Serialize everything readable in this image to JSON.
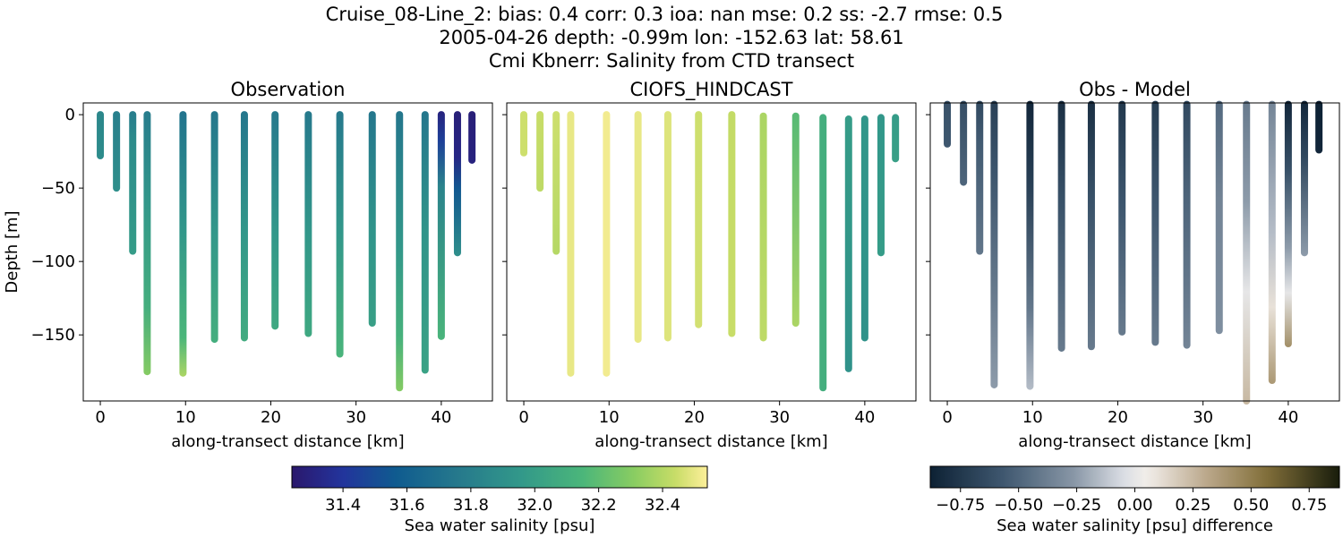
{
  "title_lines": [
    "Cruise_08-Line_2: bias: 0.4  corr: 0.3  ioa: nan  mse: 0.2  ss: -2.7  rmse: 0.5",
    "2005-04-26 depth: -0.99m lon: -152.63 lat: 58.61",
    "Cmi Kbnerr: Salinity from CTD transect"
  ],
  "chart_data": [
    {
      "type": "scatter",
      "title": "Observation",
      "xlabel": "along-transect distance [km]",
      "ylabel": "Depth [m]",
      "xlim": [
        -2,
        46
      ],
      "ylim": [
        -195,
        8
      ],
      "xticks": [
        0,
        10,
        20,
        30,
        40
      ],
      "xtick_labels": [
        "0",
        "10",
        "20",
        "30",
        "40"
      ],
      "yticks": [
        0,
        -50,
        -100,
        -150
      ],
      "ytick_labels": [
        "0",
        "−50",
        "−100",
        "−150"
      ],
      "colormap": "haline",
      "clim": [
        31.24,
        32.54
      ],
      "colorbar_label": "Sea water salinity [psu]",
      "colorbar_ticks": [
        "31.4",
        "31.6",
        "31.8",
        "32.0",
        "32.2",
        "32.4"
      ],
      "colorbar_tick_values": [
        31.4,
        31.6,
        31.8,
        32.0,
        32.2,
        32.4
      ],
      "profiles": [
        {
          "x": 0.0,
          "top": 0,
          "bottom": -28,
          "stops": [
            [
              0,
              31.85
            ],
            [
              -28,
              31.88
            ]
          ]
        },
        {
          "x": 1.9,
          "top": 0,
          "bottom": -50,
          "stops": [
            [
              0,
              31.8
            ],
            [
              -50,
              31.9
            ]
          ]
        },
        {
          "x": 3.8,
          "top": 0,
          "bottom": -93,
          "stops": [
            [
              0,
              31.78
            ],
            [
              -20,
              31.88
            ],
            [
              -93,
              31.98
            ]
          ]
        },
        {
          "x": 5.5,
          "top": 0,
          "bottom": -175,
          "stops": [
            [
              0,
              31.78
            ],
            [
              -60,
              31.95
            ],
            [
              -130,
              32.1
            ],
            [
              -175,
              32.3
            ]
          ]
        },
        {
          "x": 9.7,
          "top": 0,
          "bottom": -176,
          "stops": [
            [
              0,
              31.72
            ],
            [
              -80,
              31.95
            ],
            [
              -150,
              32.15
            ],
            [
              -176,
              32.38
            ]
          ]
        },
        {
          "x": 13.4,
          "top": 0,
          "bottom": -153,
          "stops": [
            [
              0,
              31.74
            ],
            [
              -80,
              31.95
            ],
            [
              -153,
              32.1
            ]
          ]
        },
        {
          "x": 16.9,
          "top": 0,
          "bottom": -152,
          "stops": [
            [
              0,
              31.74
            ],
            [
              -80,
              31.95
            ],
            [
              -152,
              32.08
            ]
          ]
        },
        {
          "x": 20.5,
          "top": 0,
          "bottom": -144,
          "stops": [
            [
              0,
              31.76
            ],
            [
              -80,
              31.95
            ],
            [
              -144,
              32.06
            ]
          ]
        },
        {
          "x": 24.4,
          "top": 0,
          "bottom": -149,
          "stops": [
            [
              0,
              31.76
            ],
            [
              -80,
              31.95
            ],
            [
              -149,
              32.06
            ]
          ]
        },
        {
          "x": 28.1,
          "top": 0,
          "bottom": -163,
          "stops": [
            [
              0,
              31.76
            ],
            [
              -80,
              31.95
            ],
            [
              -163,
              32.14
            ]
          ]
        },
        {
          "x": 31.9,
          "top": 0,
          "bottom": -142,
          "stops": [
            [
              0,
              31.74
            ],
            [
              -80,
              31.93
            ],
            [
              -142,
              32.0
            ]
          ]
        },
        {
          "x": 35.1,
          "top": 0,
          "bottom": -186,
          "stops": [
            [
              0,
              31.74
            ],
            [
              -90,
              31.95
            ],
            [
              -150,
              32.12
            ],
            [
              -186,
              32.3
            ]
          ]
        },
        {
          "x": 38.1,
          "top": 0,
          "bottom": -174,
          "stops": [
            [
              0,
              31.74
            ],
            [
              -80,
              31.93
            ],
            [
              -174,
              32.02
            ]
          ]
        },
        {
          "x": 40.0,
          "top": 0,
          "bottom": -151,
          "stops": [
            [
              0,
              31.3
            ],
            [
              -20,
              31.45
            ],
            [
              -50,
              31.82
            ],
            [
              -151,
              32.14
            ]
          ]
        },
        {
          "x": 41.9,
          "top": 0,
          "bottom": -94,
          "stops": [
            [
              0,
              31.28
            ],
            [
              -30,
              31.32
            ],
            [
              -50,
              31.55
            ],
            [
              -94,
              31.9
            ]
          ]
        },
        {
          "x": 43.6,
          "top": 0,
          "bottom": -31,
          "stops": [
            [
              0,
              31.28
            ],
            [
              -31,
              31.3
            ]
          ]
        }
      ]
    },
    {
      "type": "scatter",
      "title": "CIOFS_HINDCAST",
      "xlabel": "along-transect distance [km]",
      "ylabel": "",
      "xlim": [
        -2,
        46
      ],
      "ylim": [
        -195,
        8
      ],
      "xticks": [
        0,
        10,
        20,
        30,
        40
      ],
      "xtick_labels": [
        "0",
        "10",
        "20",
        "30",
        "40"
      ],
      "yticks": [
        0,
        -50,
        -100,
        -150
      ],
      "ytick_labels": [],
      "colormap": "haline",
      "clim": [
        31.24,
        32.54
      ],
      "profiles": [
        {
          "x": 0.0,
          "top": 0,
          "bottom": -26,
          "stops": [
            [
              0,
              32.45
            ],
            [
              -26,
              32.45
            ]
          ]
        },
        {
          "x": 1.9,
          "top": 0,
          "bottom": -50,
          "stops": [
            [
              0,
              32.44
            ],
            [
              -50,
              32.42
            ]
          ]
        },
        {
          "x": 3.8,
          "top": 0,
          "bottom": -93,
          "stops": [
            [
              0,
              32.45
            ],
            [
              -93,
              32.4
            ]
          ]
        },
        {
          "x": 5.5,
          "top": 0,
          "bottom": -176,
          "stops": [
            [
              0,
              32.5
            ],
            [
              -176,
              32.5
            ]
          ]
        },
        {
          "x": 9.7,
          "top": 0,
          "bottom": -176,
          "stops": [
            [
              0,
              32.52
            ],
            [
              -176,
              32.52
            ]
          ]
        },
        {
          "x": 13.4,
          "top": 0,
          "bottom": -153,
          "stops": [
            [
              0,
              32.5
            ],
            [
              -153,
              32.5
            ]
          ]
        },
        {
          "x": 16.9,
          "top": 0,
          "bottom": -152,
          "stops": [
            [
              0,
              32.48
            ],
            [
              -152,
              32.48
            ]
          ]
        },
        {
          "x": 20.5,
          "top": 0,
          "bottom": -143,
          "stops": [
            [
              0,
              32.45
            ],
            [
              -143,
              32.46
            ]
          ]
        },
        {
          "x": 24.4,
          "top": 0,
          "bottom": -149,
          "stops": [
            [
              0,
              32.43
            ],
            [
              -149,
              32.44
            ]
          ]
        },
        {
          "x": 28.1,
          "top": -1,
          "bottom": -152,
          "stops": [
            [
              -1,
              32.38
            ],
            [
              -152,
              32.42
            ]
          ]
        },
        {
          "x": 31.9,
          "top": -1,
          "bottom": -142,
          "stops": [
            [
              -1,
              32.18
            ],
            [
              -142,
              32.38
            ]
          ]
        },
        {
          "x": 35.1,
          "top": -2,
          "bottom": -186,
          "stops": [
            [
              -2,
              32.1
            ],
            [
              -186,
              32.1
            ]
          ]
        },
        {
          "x": 38.1,
          "top": -3,
          "bottom": -173,
          "stops": [
            [
              -3,
              31.98
            ],
            [
              -173,
              31.92
            ]
          ]
        },
        {
          "x": 40.0,
          "top": -3,
          "bottom": -152,
          "stops": [
            [
              -3,
              31.94
            ],
            [
              -152,
              31.92
            ]
          ]
        },
        {
          "x": 41.9,
          "top": -2,
          "bottom": -94,
          "stops": [
            [
              -2,
              31.95
            ],
            [
              -94,
              31.98
            ]
          ]
        },
        {
          "x": 43.6,
          "top": -2,
          "bottom": -30,
          "stops": [
            [
              -2,
              31.98
            ],
            [
              -30,
              32.0
            ]
          ]
        }
      ]
    },
    {
      "type": "scatter",
      "title": "Obs - Model",
      "xlabel": "along-transect distance [km]",
      "ylabel": "",
      "xlim": [
        -2,
        46
      ],
      "ylim": [
        -195,
        8
      ],
      "xticks": [
        0,
        10,
        20,
        30,
        40
      ],
      "xtick_labels": [
        "0",
        "10",
        "20",
        "30",
        "40"
      ],
      "yticks": [
        0,
        -50,
        -100,
        -150
      ],
      "ytick_labels": [],
      "colormap": "diff",
      "clim": [
        -0.88,
        0.88
      ],
      "colorbar_label": "Sea water salinity [psu] difference",
      "colorbar_ticks": [
        "−0.75",
        "−0.50",
        "−0.25",
        "0.00",
        "0.25",
        "0.50",
        "0.75"
      ],
      "colorbar_tick_values": [
        -0.75,
        -0.5,
        -0.25,
        0.0,
        0.25,
        0.5,
        0.75
      ],
      "profiles": [
        {
          "x": 0.0,
          "top": 7,
          "bottom": -20,
          "stops": [
            [
              7,
              -0.6
            ],
            [
              -20,
              -0.57
            ]
          ]
        },
        {
          "x": 1.9,
          "top": 7,
          "bottom": -46,
          "stops": [
            [
              7,
              -0.62
            ],
            [
              -46,
              -0.5
            ]
          ]
        },
        {
          "x": 3.8,
          "top": 7,
          "bottom": -93,
          "stops": [
            [
              7,
              -0.65
            ],
            [
              -20,
              -0.55
            ],
            [
              -93,
              -0.42
            ]
          ]
        },
        {
          "x": 5.5,
          "top": 7,
          "bottom": -184,
          "stops": [
            [
              7,
              -0.7
            ],
            [
              -40,
              -0.58
            ],
            [
              -120,
              -0.4
            ],
            [
              -184,
              -0.25
            ]
          ]
        },
        {
          "x": 9.7,
          "top": 7,
          "bottom": -185,
          "stops": [
            [
              7,
              -0.85
            ],
            [
              -50,
              -0.7
            ],
            [
              -130,
              -0.42
            ],
            [
              -185,
              -0.15
            ]
          ]
        },
        {
          "x": 13.4,
          "top": 7,
          "bottom": -159,
          "stops": [
            [
              7,
              -0.8
            ],
            [
              -60,
              -0.6
            ],
            [
              -159,
              -0.4
            ]
          ]
        },
        {
          "x": 16.9,
          "top": 7,
          "bottom": -158,
          "stops": [
            [
              7,
              -0.8
            ],
            [
              -60,
              -0.6
            ],
            [
              -158,
              -0.4
            ]
          ]
        },
        {
          "x": 20.5,
          "top": 7,
          "bottom": -148,
          "stops": [
            [
              7,
              -0.75
            ],
            [
              -60,
              -0.58
            ],
            [
              -148,
              -0.4
            ]
          ]
        },
        {
          "x": 24.4,
          "top": 7,
          "bottom": -155,
          "stops": [
            [
              7,
              -0.72
            ],
            [
              -60,
              -0.57
            ],
            [
              -155,
              -0.4
            ]
          ]
        },
        {
          "x": 28.1,
          "top": 7,
          "bottom": -157,
          "stops": [
            [
              7,
              -0.65
            ],
            [
              -60,
              -0.5
            ],
            [
              -157,
              -0.35
            ]
          ]
        },
        {
          "x": 31.9,
          "top": 7,
          "bottom": -147,
          "stops": [
            [
              7,
              -0.48
            ],
            [
              -60,
              -0.35
            ],
            [
              -147,
              -0.3
            ]
          ]
        },
        {
          "x": 35.1,
          "top": 7,
          "bottom": -195,
          "stops": [
            [
              7,
              -0.4
            ],
            [
              -60,
              -0.25
            ],
            [
              -120,
              0.0
            ],
            [
              -195,
              0.25
            ]
          ]
        },
        {
          "x": 38.1,
          "top": 7,
          "bottom": -181,
          "stops": [
            [
              7,
              -0.35
            ],
            [
              -80,
              -0.15
            ],
            [
              -130,
              0.1
            ],
            [
              -181,
              0.38
            ]
          ]
        },
        {
          "x": 40.0,
          "top": 7,
          "bottom": -156,
          "stops": [
            [
              7,
              -0.85
            ],
            [
              -40,
              -0.6
            ],
            [
              -90,
              -0.25
            ],
            [
              -120,
              0.0
            ],
            [
              -156,
              0.42
            ]
          ]
        },
        {
          "x": 41.9,
          "top": 7,
          "bottom": -94,
          "stops": [
            [
              7,
              -0.85
            ],
            [
              -30,
              -0.65
            ],
            [
              -94,
              -0.25
            ]
          ]
        },
        {
          "x": 43.6,
          "top": 7,
          "bottom": -24,
          "stops": [
            [
              7,
              -0.88
            ],
            [
              -24,
              -0.85
            ]
          ]
        }
      ]
    }
  ]
}
